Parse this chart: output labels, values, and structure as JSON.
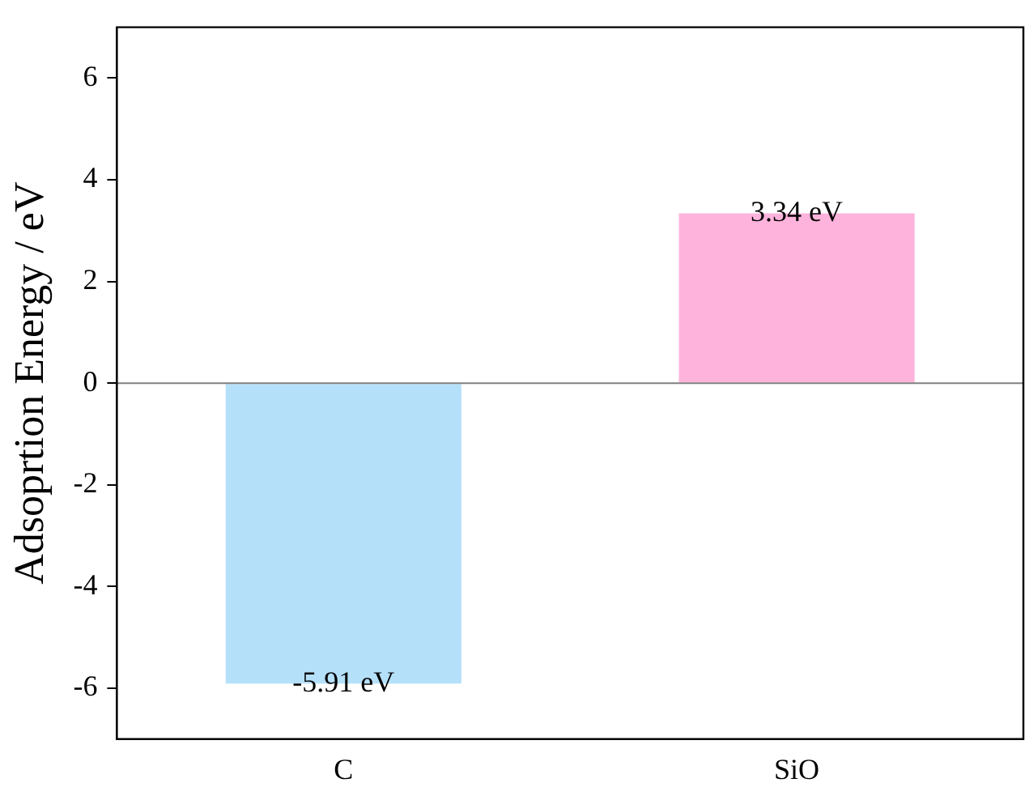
{
  "chart_data": {
    "type": "bar",
    "ylabel": "Adsoprtion Energy / eV",
    "categories": [
      "C",
      "SiO"
    ],
    "values": [
      -5.91,
      3.34
    ],
    "colors": [
      "#b5e0fa",
      "#fdb3dc"
    ],
    "value_labels": [
      "-5.91 eV",
      "3.34 eV"
    ],
    "ylim": [
      -7,
      7
    ],
    "yticks": [
      -6,
      -4,
      -2,
      0,
      2,
      4,
      6
    ],
    "ref_lines": [
      {
        "axis": "y",
        "value": 0,
        "color": "#808080"
      }
    ],
    "grid": false,
    "legend": false
  }
}
